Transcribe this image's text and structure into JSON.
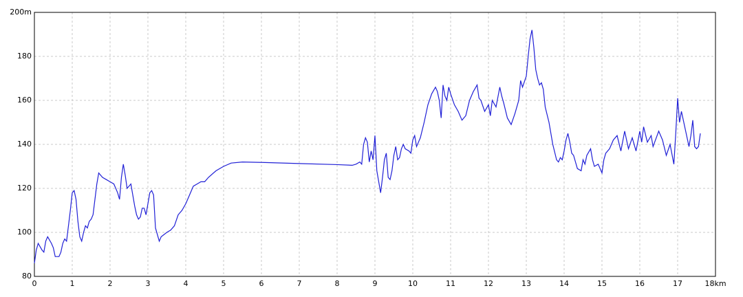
{
  "chart_data": {
    "type": "line",
    "color": "#1f1fd6",
    "grid": true,
    "xlim": [
      0,
      18
    ],
    "ylim": [
      80,
      200
    ],
    "xticks": [
      0,
      1,
      2,
      3,
      4,
      5,
      6,
      7,
      8,
      9,
      10,
      11,
      12,
      13,
      14,
      15,
      16,
      17,
      {
        "value": 18,
        "label": "18km"
      }
    ],
    "yticks": [
      80,
      100,
      120,
      140,
      160,
      180,
      {
        "value": 200,
        "label": "200m"
      }
    ],
    "x": [
      0,
      0.05,
      0.1,
      0.2,
      0.25,
      0.3,
      0.35,
      0.45,
      0.5,
      0.55,
      0.65,
      0.7,
      0.75,
      0.8,
      0.85,
      0.9,
      0.95,
      1.0,
      1.05,
      1.1,
      1.15,
      1.2,
      1.25,
      1.3,
      1.35,
      1.4,
      1.45,
      1.5,
      1.55,
      1.6,
      1.65,
      1.7,
      1.8,
      1.9,
      2.0,
      2.1,
      2.2,
      2.25,
      2.3,
      2.35,
      2.4,
      2.45,
      2.55,
      2.6,
      2.65,
      2.7,
      2.75,
      2.8,
      2.85,
      2.9,
      2.95,
      3.0,
      3.05,
      3.1,
      3.15,
      3.2,
      3.25,
      3.3,
      3.35,
      3.5,
      3.6,
      3.7,
      3.8,
      3.9,
      4.0,
      4.1,
      4.2,
      4.3,
      4.4,
      4.5,
      4.6,
      4.8,
      5.0,
      5.2,
      5.5,
      6.0,
      7.0,
      8.0,
      8.4,
      8.5,
      8.6,
      8.65,
      8.7,
      8.75,
      8.8,
      8.85,
      8.9,
      8.95,
      9.0,
      9.05,
      9.1,
      9.15,
      9.2,
      9.25,
      9.3,
      9.35,
      9.4,
      9.45,
      9.5,
      9.55,
      9.6,
      9.65,
      9.7,
      9.75,
      9.8,
      9.9,
      9.95,
      10.0,
      10.05,
      10.1,
      10.15,
      10.2,
      10.3,
      10.4,
      10.5,
      10.6,
      10.65,
      10.7,
      10.75,
      10.8,
      10.85,
      10.9,
      10.95,
      11.0,
      11.1,
      11.2,
      11.3,
      11.4,
      11.5,
      11.6,
      11.7,
      11.75,
      11.8,
      11.9,
      12.0,
      12.05,
      12.1,
      12.2,
      12.3,
      12.35,
      12.4,
      12.5,
      12.6,
      12.7,
      12.8,
      12.85,
      12.9,
      13.0,
      13.05,
      13.1,
      13.15,
      13.2,
      13.25,
      13.3,
      13.35,
      13.4,
      13.45,
      13.5,
      13.6,
      13.7,
      13.8,
      13.85,
      13.9,
      13.95,
      14.0,
      14.05,
      14.1,
      14.15,
      14.2,
      14.25,
      14.35,
      14.45,
      14.5,
      14.55,
      14.6,
      14.7,
      14.75,
      14.8,
      14.9,
      15.0,
      15.05,
      15.1,
      15.2,
      15.3,
      15.4,
      15.5,
      15.6,
      15.7,
      15.8,
      15.9,
      16.0,
      16.05,
      16.1,
      16.2,
      16.3,
      16.35,
      16.5,
      16.6,
      16.7,
      16.8,
      16.9,
      16.95,
      17.0,
      17.05,
      17.1,
      17.2,
      17.3,
      17.35,
      17.4,
      17.45,
      17.5,
      17.55,
      17.6
    ],
    "values": [
      86,
      92,
      95,
      92,
      91,
      96,
      98,
      95,
      93,
      89,
      89,
      91,
      95,
      97,
      96,
      103,
      110,
      118,
      119,
      115,
      105,
      98,
      96,
      100,
      103,
      102,
      105,
      106,
      108,
      115,
      122,
      127,
      125,
      124,
      123,
      122,
      118,
      115,
      125,
      131,
      126,
      120,
      122,
      117,
      112,
      108,
      106,
      107,
      111,
      111,
      108,
      113,
      118,
      119,
      117,
      102,
      99,
      96,
      98,
      100,
      101,
      103,
      108,
      110,
      113,
      117,
      121,
      122,
      123,
      123,
      125,
      128,
      130,
      131.5,
      132,
      131.8,
      131.3,
      130.8,
      130.5,
      131,
      132,
      131,
      140,
      143,
      141,
      132,
      137,
      133,
      144,
      128,
      123,
      118,
      125,
      133,
      136,
      125,
      124,
      128,
      135,
      139,
      133,
      134,
      138,
      140,
      138,
      137,
      136,
      142,
      144,
      139,
      141,
      143,
      150,
      158,
      163,
      166,
      164,
      160,
      152,
      167,
      162,
      160,
      166,
      163,
      158,
      155,
      151,
      153,
      160,
      164,
      167,
      161,
      160,
      155,
      158,
      153,
      160,
      157,
      166,
      162,
      159,
      152,
      149,
      154,
      160,
      169,
      166,
      171,
      180,
      188,
      192,
      184,
      174,
      170,
      167,
      168,
      165,
      157,
      150,
      140,
      133,
      132,
      134,
      133,
      137,
      142,
      145,
      141,
      136,
      135,
      129,
      128,
      133,
      131,
      135,
      138,
      133,
      130,
      131,
      127,
      133,
      136,
      138,
      142,
      144,
      137,
      146,
      138,
      143,
      137,
      146,
      141,
      148,
      141,
      144,
      139,
      146,
      142,
      135,
      140,
      131,
      145,
      161,
      150,
      155,
      147,
      139,
      144,
      151,
      139,
      138,
      139,
      145
    ]
  }
}
